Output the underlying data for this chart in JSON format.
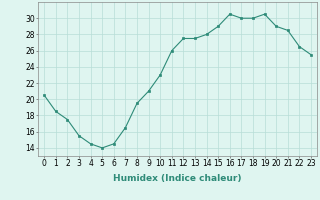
{
  "x": [
    0,
    1,
    2,
    3,
    4,
    5,
    6,
    7,
    8,
    9,
    10,
    11,
    12,
    13,
    14,
    15,
    16,
    17,
    18,
    19,
    20,
    21,
    22,
    23
  ],
  "y": [
    20.5,
    18.5,
    17.5,
    15.5,
    14.5,
    14.0,
    14.5,
    16.5,
    19.5,
    21.0,
    23.0,
    26.0,
    27.5,
    27.5,
    28.0,
    29.0,
    30.5,
    30.0,
    30.0,
    30.5,
    29.0,
    28.5,
    26.5,
    25.5
  ],
  "xlabel": "Humidex (Indice chaleur)",
  "ylim": [
    13,
    32
  ],
  "xlim": [
    -0.5,
    23.5
  ],
  "yticks": [
    14,
    16,
    18,
    20,
    22,
    24,
    26,
    28,
    30
  ],
  "xticks": [
    0,
    1,
    2,
    3,
    4,
    5,
    6,
    7,
    8,
    9,
    10,
    11,
    12,
    13,
    14,
    15,
    16,
    17,
    18,
    19,
    20,
    21,
    22,
    23
  ],
  "line_color": "#2e8b78",
  "marker_color": "#2e8b78",
  "bg_color": "#dff5f0",
  "grid_color": "#b8ddd7",
  "label_fontsize": 6.5,
  "tick_fontsize": 5.5
}
